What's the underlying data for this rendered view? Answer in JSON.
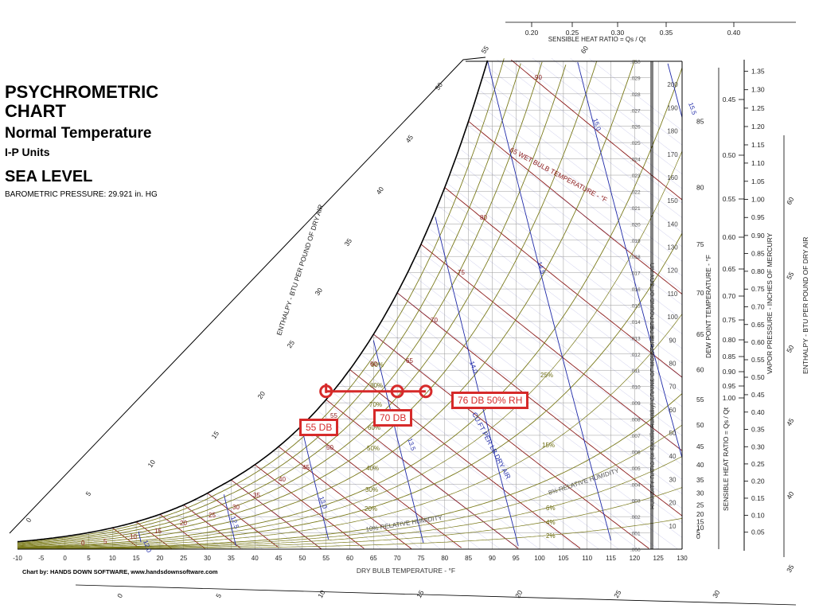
{
  "header": {
    "title": "PSYCHROMETRIC CHART",
    "subtitle": "Normal Temperature",
    "units": "I-P Units",
    "altitude": "SEA LEVEL",
    "pressure": "BAROMETRIC PRESSURE: 29.921 in. HG"
  },
  "credit": "Chart by: HANDS DOWN SOFTWARE, www.handsdownsoftware.com",
  "chart_data": {
    "type": "psychrometric",
    "xlabel": "DRY BULB TEMPERATURE - °F",
    "ylabel_right": "HUMIDITY RATIO (or Specific Humidity) GRAINS OF MOISTURE PER POUND OF DRY AIR",
    "enthalpy_label": "ENTHALPY - BTU PER POUND OF DRY AIR",
    "wet_bulb_label": "WET BULB TEMPERATURE - °F",
    "dew_point_label": "DEW POINT TEMPERATURE - °F",
    "vapor_pressure_label": "VAPOR PRESSURE - INCHES OF MERCURY",
    "shr_label": "SENSIBLE HEAT RATIO = Qs / Qt",
    "volume_label": "CU.FT PER LB DRY AIR",
    "rh_label": "RELATIVE HUMIDITY",
    "xlim": [
      -10,
      130
    ],
    "ylim": [
      0,
      0.03
    ],
    "x_ticks": [
      -10,
      -5,
      0,
      5,
      10,
      15,
      20,
      25,
      30,
      35,
      40,
      45,
      50,
      55,
      60,
      65,
      70,
      75,
      80,
      85,
      90,
      95,
      100,
      105,
      110,
      115,
      120,
      125,
      130
    ],
    "humidity_ratio_ticks": [
      ".000",
      ".001",
      ".002",
      ".003",
      ".004",
      ".005",
      ".006",
      ".007",
      ".008",
      ".009",
      ".010",
      ".011",
      ".012",
      ".013",
      ".014",
      ".015",
      ".016",
      ".017",
      ".018",
      ".019",
      ".020",
      ".021",
      ".022",
      ".023",
      ".024",
      ".025",
      ".026",
      ".027",
      ".028",
      ".029",
      ".030"
    ],
    "grains_ticks": [
      10,
      20,
      30,
      40,
      50,
      60,
      70,
      80,
      90,
      100,
      110,
      120,
      130,
      140,
      150,
      160,
      170,
      180,
      190,
      200
    ],
    "dew_point_ticks": [
      0,
      5,
      10,
      15,
      20,
      25,
      30,
      35,
      40,
      45,
      50,
      55,
      60,
      65,
      70,
      75,
      80,
      85
    ],
    "vapor_pressure_ticks": [
      "0.05",
      "0.10",
      "0.15",
      "0.20",
      "0.25",
      "0.30",
      "0.35",
      "0.40",
      "0.45",
      "0.50",
      "0.55",
      "0.60",
      "0.65",
      "0.70",
      "0.75",
      "0.80",
      "0.85",
      "0.90",
      "0.95",
      "1.00",
      "1.05",
      "1.10",
      "1.15",
      "1.20",
      "1.25",
      "1.30",
      "1.35"
    ],
    "shr_right_ticks": [
      "0.45",
      "0.50",
      "0.55",
      "0.60",
      "0.65",
      "0.70",
      "0.75",
      "0.80",
      "0.85",
      "0.90",
      "0.95",
      "1.00"
    ],
    "shr_top_ticks": [
      "0.20",
      "0.25",
      "0.30",
      "0.35",
      "0.40"
    ],
    "enthalpy_scale_ticks": [
      0,
      5,
      10,
      15,
      20,
      25,
      30,
      35,
      40,
      45,
      50,
      55,
      60
    ],
    "enthalpy_right_ticks": [
      35,
      40,
      45,
      50,
      55,
      60
    ],
    "enthalpy_bottom_ticks": [
      0,
      5,
      10,
      15,
      20,
      25,
      30
    ],
    "rh_curves": [
      10,
      20,
      30,
      40,
      50,
      60,
      70,
      80,
      90
    ],
    "rh_labels": [
      "10%",
      "20%",
      "30%",
      "40%",
      "50%",
      "60%",
      "70%",
      "80%",
      "90%",
      "2%",
      "4%",
      "6%",
      "8%",
      "15%",
      "25%"
    ],
    "wet_bulb_lines": [
      10,
      15,
      20,
      25,
      30,
      35,
      40,
      45,
      50,
      55,
      60,
      65,
      70,
      75,
      80,
      85,
      90
    ],
    "specific_volume_lines": [
      12.0,
      12.5,
      13.0,
      13.5,
      14.0,
      14.5,
      15.0,
      15.5
    ],
    "annotations": [
      {
        "label": "55 DB",
        "dry_bulb": 55,
        "humidity_ratio": 0.0097
      },
      {
        "label": "70 DB",
        "dry_bulb": 70,
        "humidity_ratio": 0.0097
      },
      {
        "label": "76 DB 50% RH",
        "dry_bulb": 76,
        "humidity_ratio": 0.0097
      }
    ]
  }
}
